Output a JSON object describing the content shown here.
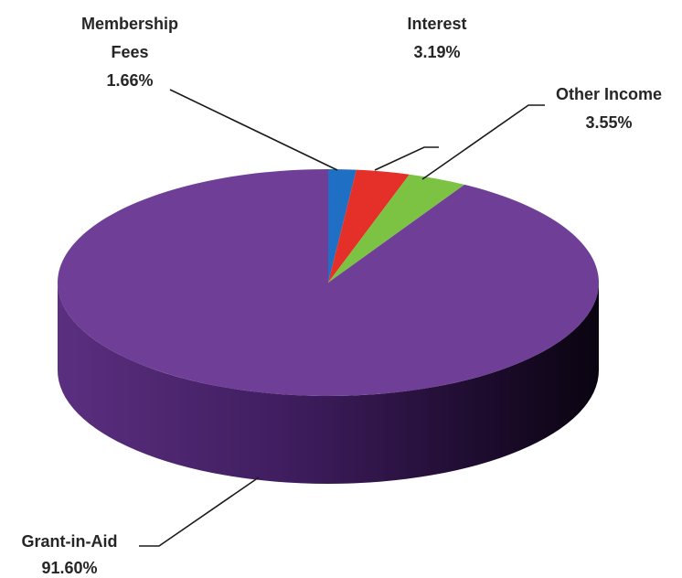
{
  "chart_data": {
    "type": "pie",
    "style": "3d",
    "slices": [
      {
        "label": "Membership Fees",
        "label_lines": [
          "Membership",
          "Fees"
        ],
        "value": 1.66,
        "value_text": "1.66%",
        "color": "#1f6fc4"
      },
      {
        "label": "Interest",
        "label_lines": [
          "Interest"
        ],
        "value": 3.19,
        "value_text": "3.19%",
        "color": "#e5302a"
      },
      {
        "label": "Other Income",
        "label_lines": [
          "Other Income"
        ],
        "value": 3.55,
        "value_text": "3.55%",
        "color": "#7cc243"
      },
      {
        "label": "Grant-in-Aid",
        "label_lines": [
          "Grant-in-Aid"
        ],
        "value": 91.6,
        "value_text": "91.60%",
        "color": "#6f3f98"
      }
    ],
    "title": "",
    "legend": "none"
  }
}
